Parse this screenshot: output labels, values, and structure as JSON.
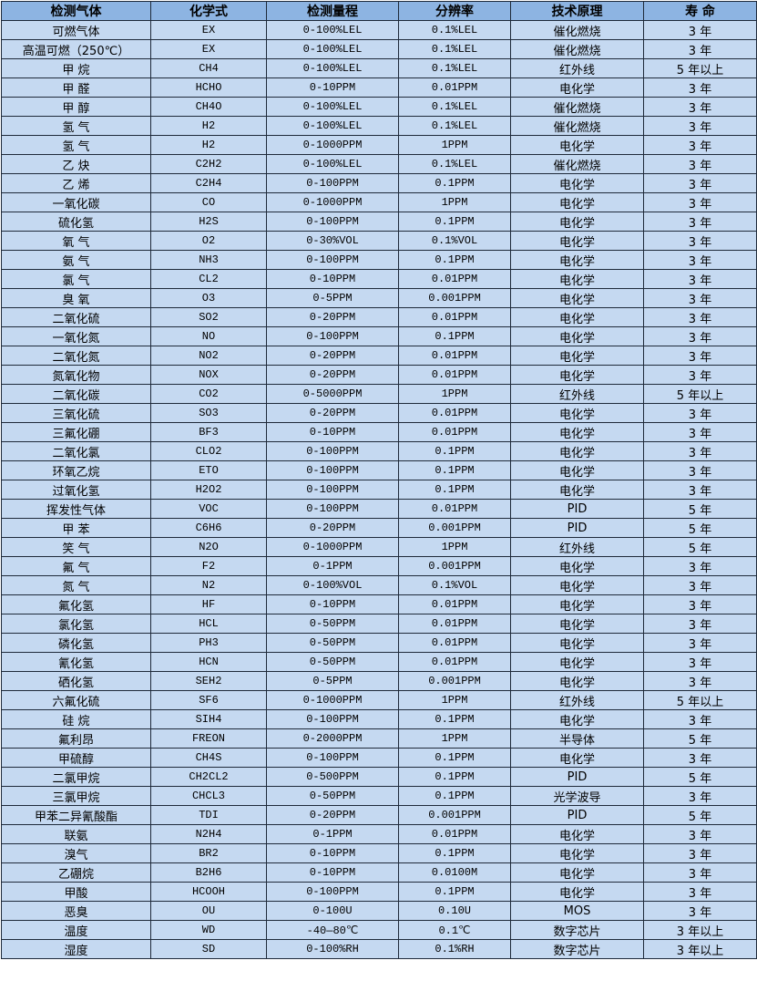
{
  "headers": [
    "检测气体",
    "化学式",
    "检测量程",
    "分辨率",
    "技术原理",
    "寿 命"
  ],
  "rows": [
    [
      "可燃气体",
      "EX",
      "0-100%LEL",
      "0.1%LEL",
      "催化燃烧",
      "3 年"
    ],
    [
      "高温可燃（250℃）",
      "EX",
      "0-100%LEL",
      "0.1%LEL",
      "催化燃烧",
      "3 年"
    ],
    [
      "甲 烷",
      "CH4",
      "0-100%LEL",
      "0.1%LEL",
      "红外线",
      "5 年以上"
    ],
    [
      "甲 醛",
      "HCHO",
      "0-10PPM",
      "0.01PPM",
      "电化学",
      "3 年"
    ],
    [
      "甲 醇",
      "CH4O",
      "0-100%LEL",
      "0.1%LEL",
      "催化燃烧",
      "3 年"
    ],
    [
      "氢 气",
      "H2",
      "0-100%LEL",
      "0.1%LEL",
      "催化燃烧",
      "3 年"
    ],
    [
      "氢 气",
      "H2",
      "0-1000PPM",
      "1PPM",
      "电化学",
      "3 年"
    ],
    [
      "乙 炔",
      "C2H2",
      "0-100%LEL",
      "0.1%LEL",
      "催化燃烧",
      "3 年"
    ],
    [
      "乙 烯",
      "C2H4",
      "0-100PPM",
      "0.1PPM",
      "电化学",
      "3 年"
    ],
    [
      "一氧化碳",
      "CO",
      "0-1000PPM",
      "1PPM",
      "电化学",
      "3 年"
    ],
    [
      "硫化氢",
      "H2S",
      "0-100PPM",
      "0.1PPM",
      "电化学",
      "3 年"
    ],
    [
      "氧 气",
      "O2",
      "0-30%VOL",
      "0.1%VOL",
      "电化学",
      "3 年"
    ],
    [
      "氨 气",
      "NH3",
      "0-100PPM",
      "0.1PPM",
      "电化学",
      "3 年"
    ],
    [
      "氯 气",
      "CL2",
      "0-10PPM",
      "0.01PPM",
      "电化学",
      "3 年"
    ],
    [
      "臭 氧",
      "O3",
      "0-5PPM",
      "0.001PPM",
      "电化学",
      "3 年"
    ],
    [
      "二氧化硫",
      "SO2",
      "0-20PPM",
      "0.01PPM",
      "电化学",
      "3 年"
    ],
    [
      "一氧化氮",
      "NO",
      "0-100PPM",
      "0.1PPM",
      "电化学",
      "3 年"
    ],
    [
      "二氧化氮",
      "NO2",
      "0-20PPM",
      "0.01PPM",
      "电化学",
      "3 年"
    ],
    [
      "氮氧化物",
      "NOX",
      "0-20PPM",
      "0.01PPM",
      "电化学",
      "3 年"
    ],
    [
      "二氧化碳",
      "CO2",
      "0-5000PPM",
      "1PPM",
      "红外线",
      "5 年以上"
    ],
    [
      "三氧化硫",
      "SO3",
      "0-20PPM",
      "0.01PPM",
      "电化学",
      "3 年"
    ],
    [
      "三氟化硼",
      "BF3",
      "0-10PPM",
      "0.01PPM",
      "电化学",
      "3 年"
    ],
    [
      "二氧化氯",
      "CLO2",
      "0-100PPM",
      "0.1PPM",
      "电化学",
      "3 年"
    ],
    [
      "环氧乙烷",
      "ETO",
      "0-100PPM",
      "0.1PPM",
      "电化学",
      "3 年"
    ],
    [
      "过氧化氢",
      "H2O2",
      "0-100PPM",
      "0.1PPM",
      "电化学",
      "3 年"
    ],
    [
      "挥发性气体",
      "VOC",
      "0-100PPM",
      "0.01PPM",
      "PID",
      "5 年"
    ],
    [
      "甲 苯",
      "C6H6",
      "0-20PPM",
      "0.001PPM",
      "PID",
      "5 年"
    ],
    [
      "笑 气",
      "N2O",
      "0-1000PPM",
      "1PPM",
      "红外线",
      "5 年"
    ],
    [
      "氟 气",
      "F2",
      "0-1PPM",
      "0.001PPM",
      "电化学",
      "3 年"
    ],
    [
      "氮 气",
      "N2",
      "0-100%VOL",
      "0.1%VOL",
      "电化学",
      "3 年"
    ],
    [
      "氟化氢",
      "HF",
      "0-10PPM",
      "0.01PPM",
      "电化学",
      "3 年"
    ],
    [
      "氯化氢",
      "HCL",
      "0-50PPM",
      "0.01PPM",
      "电化学",
      "3 年"
    ],
    [
      "磷化氢",
      "PH3",
      "0-50PPM",
      "0.01PPM",
      "电化学",
      "3 年"
    ],
    [
      "氰化氢",
      "HCN",
      "0-50PPM",
      "0.01PPM",
      "电化学",
      "3 年"
    ],
    [
      "硒化氢",
      "SEH2",
      "0-5PPM",
      "0.001PPM",
      "电化学",
      "3 年"
    ],
    [
      "六氟化硫",
      "SF6",
      "0-1000PPM",
      "1PPM",
      "红外线",
      "5 年以上"
    ],
    [
      "硅 烷",
      "SIH4",
      "0-100PPM",
      "0.1PPM",
      "电化学",
      "3 年"
    ],
    [
      "氟利昂",
      "FREON",
      "0-2000PPM",
      "1PPM",
      "半导体",
      "5 年"
    ],
    [
      "甲硫醇",
      "CH4S",
      "0-100PPM",
      "0.1PPM",
      "电化学",
      "3 年"
    ],
    [
      "二氯甲烷",
      "CH2CL2",
      "0-500PPM",
      "0.1PPM",
      "PID",
      "5 年"
    ],
    [
      "三氯甲烷",
      "CHCL3",
      "0-50PPM",
      "0.1PPM",
      "光学波导",
      "3 年"
    ],
    [
      "甲苯二异氰酸酯",
      "TDI",
      "0-20PPM",
      "0.001PPM",
      "PID",
      "5 年"
    ],
    [
      "联氨",
      "N2H4",
      "0-1PPM",
      "0.01PPM",
      "电化学",
      "3 年"
    ],
    [
      "溴气",
      "BR2",
      "0-10PPM",
      "0.1PPM",
      "电化学",
      "3 年"
    ],
    [
      "乙硼烷",
      "B2H6",
      "0-10PPM",
      "0.0100M",
      "电化学",
      "3 年"
    ],
    [
      "甲酸",
      "HCOOH",
      "0-100PPM",
      "0.1PPM",
      "电化学",
      "3 年"
    ],
    [
      "恶臭",
      "OU",
      "0-100U",
      "0.10U",
      "MOS",
      "3 年"
    ],
    [
      "温度",
      "WD",
      "-40—80℃",
      "0.1℃",
      "数字芯片",
      "3 年以上"
    ],
    [
      "湿度",
      "SD",
      "0-100%RH",
      "0.1%RH",
      "数字芯片",
      "3 年以上"
    ]
  ],
  "colors": {
    "header_bg": "#8db4e2",
    "row_bg": "#c5d9f1",
    "border": "#1f2a3a"
  }
}
